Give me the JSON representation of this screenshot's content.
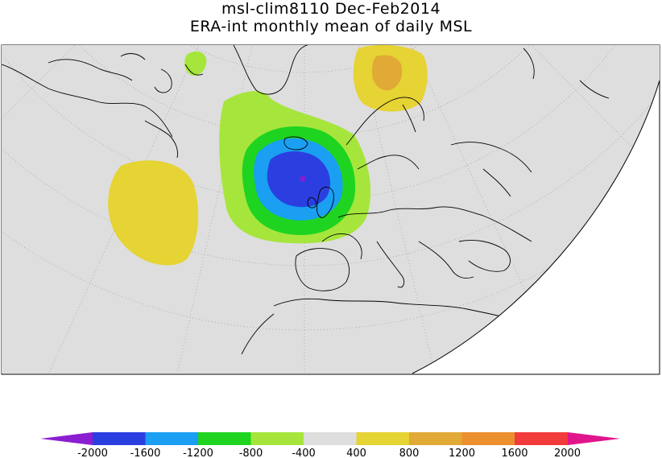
{
  "title": {
    "line1": "msl-clim8110 Dec-Feb2014",
    "line2": "ERA-int monthly mean of daily MSL"
  },
  "colorbar": {
    "ticks": [
      "-2000",
      "-1600",
      "-1200",
      "-800",
      "-400",
      "400",
      "800",
      "1200",
      "1600",
      "2000"
    ],
    "colors": {
      "below": "#8a1ed0",
      "bins": [
        "#2b3fe0",
        "#1a9ff2",
        "#1fd420",
        "#a6e63c",
        "#dedede",
        "#e6d334",
        "#e1a935",
        "#ec8f2e",
        "#f23b3b"
      ],
      "above": "#e0158c"
    }
  },
  "map": {
    "background": "#dedede",
    "coast_color": "#000000"
  }
}
